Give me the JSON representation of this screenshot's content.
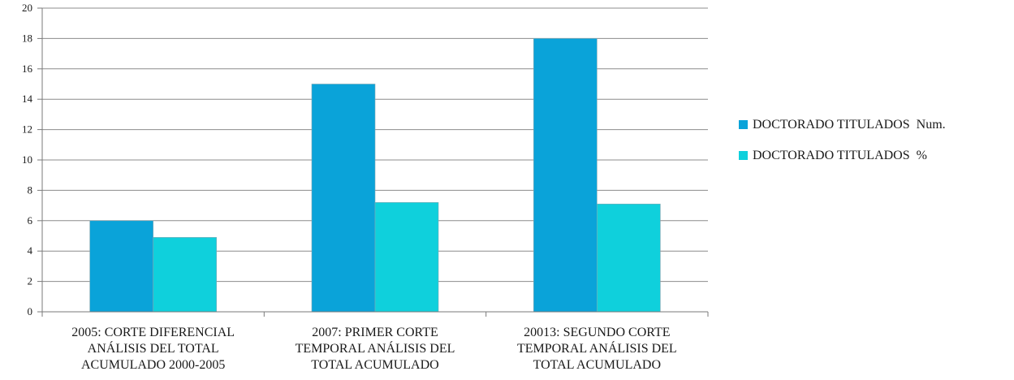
{
  "chart_data": {
    "type": "bar",
    "categories": [
      [
        "2005: CORTE DIFERENCIAL",
        "ANÁLISIS DEL TOTAL",
        "ACUMULADO 2000-2005"
      ],
      [
        "2007: PRIMER CORTE",
        "TEMPORAL ANÁLISIS DEL",
        "TOTAL ACUMULADO"
      ],
      [
        "20013: SEGUNDO CORTE",
        "TEMPORAL ANÁLISIS DEL",
        "TOTAL ACUMULADO"
      ]
    ],
    "series": [
      {
        "name": "DOCTORADO TITULADOS  Num.",
        "values": [
          6,
          15,
          18
        ],
        "color": "#0aa3d9"
      },
      {
        "name": "DOCTORADO TITULADOS  %",
        "values": [
          4.9,
          7.2,
          7.1
        ],
        "color": "#0fd0dc"
      }
    ],
    "yticks": [
      "0",
      "2",
      "4",
      "6",
      "8",
      "10",
      "12",
      "14",
      "16",
      "18",
      "20"
    ],
    "ylim": [
      0,
      20
    ],
    "grid": true,
    "legend_position": "right",
    "title": "",
    "xlabel": "",
    "ylabel": ""
  }
}
